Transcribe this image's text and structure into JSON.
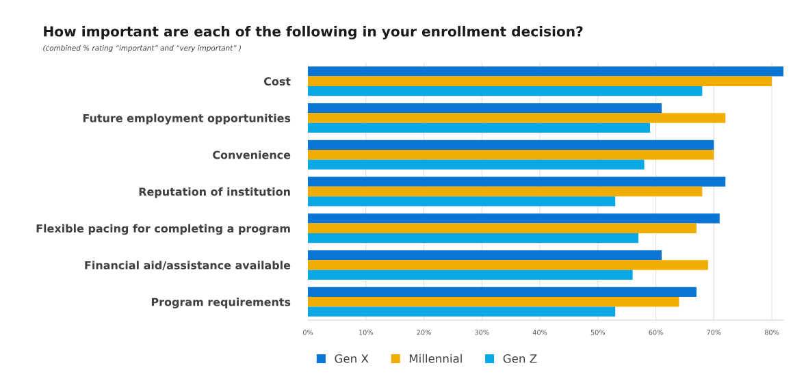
{
  "chart_data": {
    "type": "bar",
    "orientation": "horizontal",
    "title": "How important are each of the following in your enrollment decision?",
    "subtitle": "(combined % rating “important” and “very important” )",
    "categories": [
      "Cost",
      "Future employment opportunities",
      "Convenience",
      "Reputation of institution",
      "Flexible pacing for completing a program",
      "Financial aid/assistance available",
      "Program requirements"
    ],
    "series": [
      {
        "name": "Gen X",
        "color": "#0a75d3",
        "values": [
          82,
          61,
          70,
          72,
          71,
          61,
          67
        ]
      },
      {
        "name": "Millennial",
        "color": "#efad06",
        "values": [
          80,
          72,
          70,
          68,
          67,
          69,
          64
        ]
      },
      {
        "name": "Gen Z",
        "color": "#0aa8e6",
        "values": [
          68,
          59,
          58,
          53,
          57,
          56,
          53
        ]
      }
    ],
    "xlim": [
      0,
      82
    ],
    "xticks": [
      {
        "value": 0,
        "label": "0%"
      },
      {
        "value": 10,
        "label": "10%"
      },
      {
        "value": 20,
        "label": "20%"
      },
      {
        "value": 30,
        "label": "30%"
      },
      {
        "value": 40,
        "label": "40%"
      },
      {
        "value": 50,
        "label": "50%"
      },
      {
        "value": 60,
        "label": "60%"
      },
      {
        "value": 70,
        "label": "70%"
      },
      {
        "value": 80,
        "label": "80%"
      }
    ],
    "grid": "x",
    "legend": "bottom"
  }
}
